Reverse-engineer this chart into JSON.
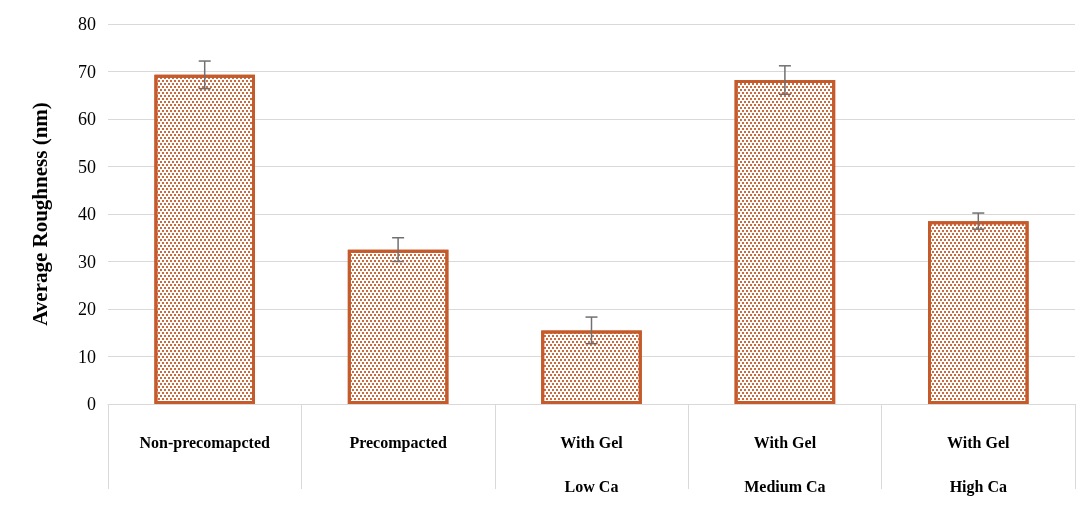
{
  "chart_data": {
    "type": "bar",
    "ylabel": "Average Roughness (nm)",
    "categories": [
      "Non-precomapcted",
      "Precompacted",
      "With Gel\nLow Ca",
      "With Gel\nMedium Ca",
      "With Gel\nHigh Ca"
    ],
    "values": [
      69.3,
      32.5,
      15.5,
      68.2,
      38.5
    ],
    "errors": [
      2.9,
      2.5,
      2.8,
      3.0,
      1.7
    ],
    "color": "#c55a2b",
    "ylim": [
      0,
      80
    ],
    "yticks": [
      0,
      10,
      20,
      30,
      40,
      50,
      60,
      70,
      80
    ],
    "grid": "y"
  }
}
